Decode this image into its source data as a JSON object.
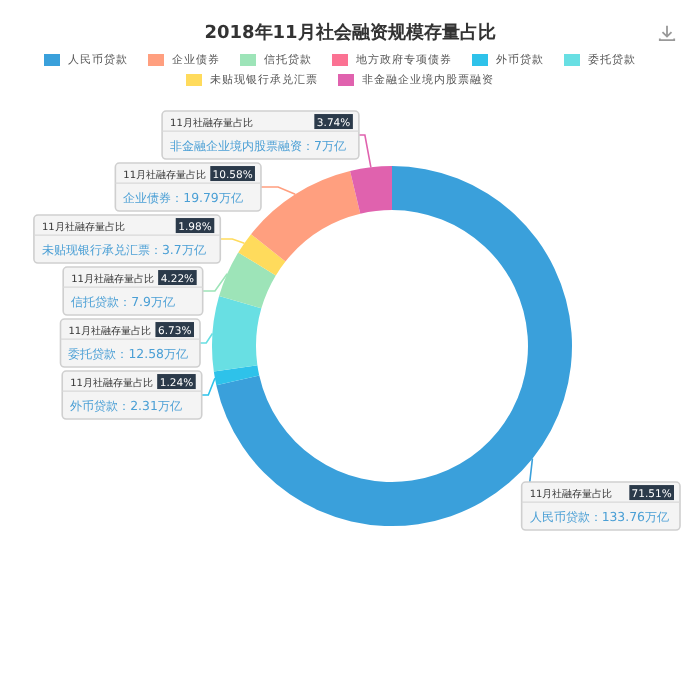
{
  "chart_data": {
    "type": "donut",
    "title": "2018年11月社会融资规模存量占比",
    "categories": [
      "人民币贷款",
      "外币贷款",
      "委托贷款",
      "信托贷款",
      "未贴现银行承兑汇票",
      "企业债券",
      "地方政府专项债券",
      "非金融企业境内股票融资"
    ],
    "values": [
      133.76,
      2.31,
      12.58,
      7.9,
      3.7,
      19.79,
      null,
      7
    ],
    "colors": [
      "#3aa0db",
      "#2ec2ea",
      "#68dfe3",
      "#9de4b8",
      "#ffdb5c",
      "#ff9f7f",
      "#fb7293",
      "#e062ae"
    ],
    "value_labels": [
      "人民币贷款：133.76万亿",
      "外币贷款：2.31万亿",
      "委托贷款：12.58万亿",
      "信托贷款：7.9万亿",
      "未贴现银行承兑汇票：3.7万亿",
      "企业债券：19.79万亿",
      null,
      "非金融企业境内股票融资：7万亿"
    ],
    "annotations": [
      "11月社融存量占比",
      {
        "text": "71.51%",
        "x": "人民币贷款"
      },
      {
        "text": "1.24%",
        "x": "外币贷款"
      },
      {
        "text": "6.73%",
        "x": "委托贷款"
      },
      {
        "text": "4.22%",
        "x": "信托贷款"
      },
      {
        "text": "1.98%",
        "x": "未贴现银行承兑汇票"
      },
      {
        "text": "10.58%",
        "x": "企业债券"
      },
      {
        "text": "3.74%",
        "x": "非金融企业境内股票融资"
      }
    ],
    "legend": "top"
  }
}
